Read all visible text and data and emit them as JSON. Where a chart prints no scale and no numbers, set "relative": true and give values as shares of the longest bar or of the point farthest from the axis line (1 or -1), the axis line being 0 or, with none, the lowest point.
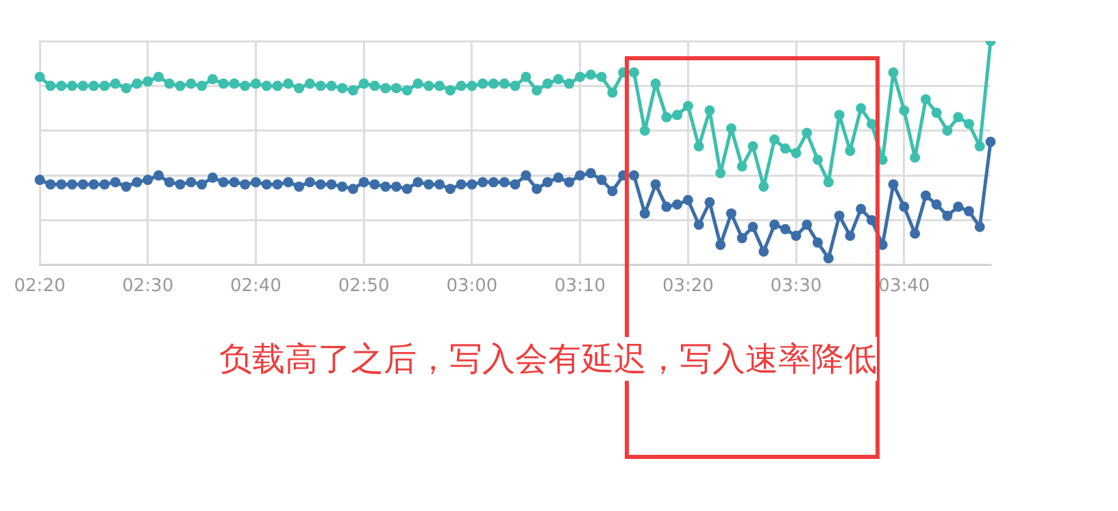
{
  "chart_data": {
    "type": "line",
    "relative": true,
    "grid": true,
    "legend": false,
    "marker": "circle",
    "categories": [
      "02:20",
      null,
      null,
      null,
      null,
      null,
      null,
      null,
      null,
      null,
      "02:30",
      null,
      null,
      null,
      null,
      null,
      null,
      null,
      null,
      null,
      "02:40",
      null,
      null,
      null,
      null,
      null,
      null,
      null,
      null,
      null,
      "02:50",
      null,
      null,
      null,
      null,
      null,
      null,
      null,
      null,
      null,
      "03:00",
      null,
      null,
      null,
      null,
      null,
      null,
      null,
      null,
      null,
      "03:10",
      null,
      null,
      null,
      null,
      null,
      null,
      null,
      null,
      null,
      "03:20",
      null,
      null,
      null,
      null,
      null,
      null,
      null,
      null,
      null,
      "03:30",
      null,
      null,
      null,
      null,
      null,
      null,
      null,
      null,
      null,
      "03:40",
      null,
      null,
      null,
      null,
      null,
      null,
      null,
      null
    ],
    "series": [
      {
        "color": "#3dbfae",
        "values": [
          0.84,
          0.8,
          0.8,
          0.8,
          0.8,
          0.8,
          0.8,
          0.81,
          0.79,
          0.81,
          0.82,
          0.84,
          0.81,
          0.8,
          0.81,
          0.8,
          0.83,
          0.81,
          0.81,
          0.8,
          0.81,
          0.8,
          0.8,
          0.81,
          0.79,
          0.81,
          0.8,
          0.8,
          0.79,
          0.78,
          0.81,
          0.8,
          0.79,
          0.79,
          0.78,
          0.81,
          0.8,
          0.8,
          0.78,
          0.8,
          0.8,
          0.81,
          0.81,
          0.81,
          0.8,
          0.84,
          0.78,
          0.81,
          0.83,
          0.81,
          0.84,
          0.85,
          0.84,
          0.77,
          0.86,
          0.86,
          0.6,
          0.81,
          0.66,
          0.67,
          0.71,
          0.53,
          0.69,
          0.41,
          0.61,
          0.44,
          0.53,
          0.35,
          0.56,
          0.52,
          0.5,
          0.59,
          0.47,
          0.37,
          0.67,
          0.51,
          0.7,
          0.63,
          0.47,
          0.86,
          0.69,
          0.48,
          0.74,
          0.68,
          0.6,
          0.66,
          0.63,
          0.53,
          1
        ]
      },
      {
        "color": "#3b6ea8",
        "values": [
          0.38,
          0.36,
          0.36,
          0.36,
          0.36,
          0.36,
          0.36,
          0.37,
          0.35,
          0.37,
          0.38,
          0.4,
          0.37,
          0.36,
          0.37,
          0.36,
          0.39,
          0.37,
          0.37,
          0.36,
          0.37,
          0.36,
          0.36,
          0.37,
          0.35,
          0.37,
          0.36,
          0.36,
          0.35,
          0.34,
          0.37,
          0.36,
          0.35,
          0.35,
          0.34,
          0.37,
          0.36,
          0.36,
          0.34,
          0.36,
          0.36,
          0.37,
          0.37,
          0.37,
          0.36,
          0.4,
          0.34,
          0.37,
          0.39,
          0.37,
          0.4,
          0.41,
          0.38,
          0.33,
          0.4,
          0.4,
          0.23,
          0.36,
          0.26,
          0.27,
          0.29,
          0.18,
          0.28,
          0.09,
          0.23,
          0.12,
          0.17,
          0.06,
          0.18,
          0.16,
          0.13,
          0.18,
          0.1,
          0.03,
          0.22,
          0.13,
          0.25,
          0.2,
          0.09,
          0.36,
          0.26,
          0.14,
          0.31,
          0.27,
          0.22,
          0.26,
          0.24,
          0.17,
          0.55
        ]
      }
    ],
    "annotations": [
      "负载高了之后，写入会有延迟，写入速率降低"
    ]
  }
}
